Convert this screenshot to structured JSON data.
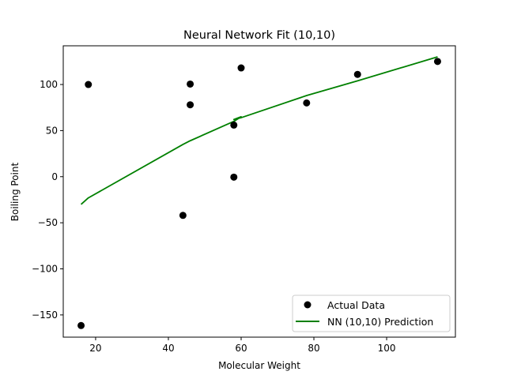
{
  "chart_data": {
    "type": "scatter",
    "title": "Neural Network Fit (10,10)",
    "xlabel": "Molecular Weight",
    "ylabel": "Boiling Point",
    "xlim": [
      11.1,
      118.9
    ],
    "ylim": [
      -174.1,
      142.0
    ],
    "x_ticks": [
      20,
      40,
      60,
      80,
      100
    ],
    "x_tick_labels": [
      "20",
      "40",
      "60",
      "80",
      "100"
    ],
    "y_ticks": [
      -150,
      -100,
      -50,
      0,
      50,
      100
    ],
    "y_tick_labels": [
      "−150",
      "−100",
      "−50",
      "0",
      "50",
      "100"
    ],
    "grid": false,
    "legend_position": "lower right",
    "series": [
      {
        "name": "Actual Data",
        "kind": "scatter",
        "color": "#000000",
        "points": [
          [
            16,
            -161.5
          ],
          [
            18,
            100
          ],
          [
            44,
            -42
          ],
          [
            46,
            100.5
          ],
          [
            46,
            78
          ],
          [
            58,
            56
          ],
          [
            58,
            -0.5
          ],
          [
            60,
            118
          ],
          [
            78,
            80
          ],
          [
            92,
            111
          ],
          [
            114,
            125
          ]
        ]
      },
      {
        "name": "NN (10,10) Prediction",
        "kind": "line",
        "color": "#008000",
        "points": [
          [
            16,
            -30
          ],
          [
            18,
            -23
          ],
          [
            44,
            35
          ],
          [
            46,
            39
          ],
          [
            46,
            39
          ],
          [
            58,
            60
          ],
          [
            58,
            60
          ],
          [
            60,
            65
          ],
          [
            58,
            62
          ],
          [
            60,
            64
          ],
          [
            78,
            88
          ],
          [
            92,
            104
          ],
          [
            114,
            130
          ]
        ]
      }
    ]
  }
}
